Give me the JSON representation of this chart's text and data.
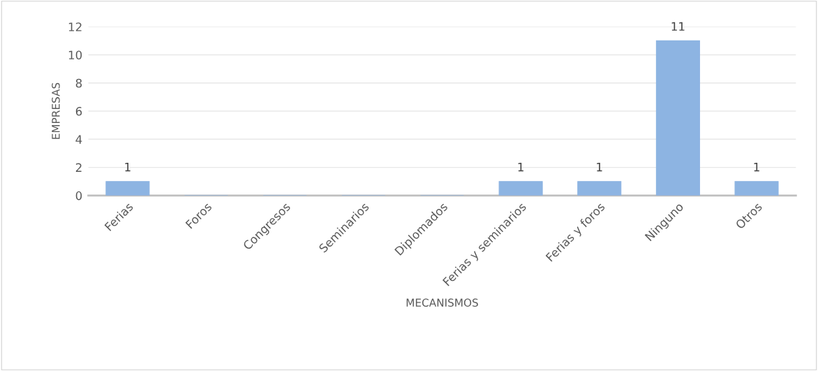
{
  "chart_data": {
    "type": "bar",
    "categories": [
      "Ferias",
      "Foros",
      "Congresos",
      "Seminarios",
      "Diplomados",
      "Ferias y seminarios",
      "Ferias y foros",
      "Ninguno",
      "Otros"
    ],
    "values": [
      1,
      0,
      0,
      0,
      0,
      1,
      1,
      11,
      1
    ],
    "value_labels": [
      "1",
      null,
      null,
      null,
      null,
      "1",
      "1",
      "11",
      "1"
    ],
    "color": "#8db4e2",
    "xlabel": "MECANISMOS",
    "ylabel": "EMPRESAS",
    "ylim": [
      0,
      12
    ],
    "yticks": [
      0,
      2,
      4,
      6,
      8,
      10,
      12
    ],
    "grid": "y"
  }
}
